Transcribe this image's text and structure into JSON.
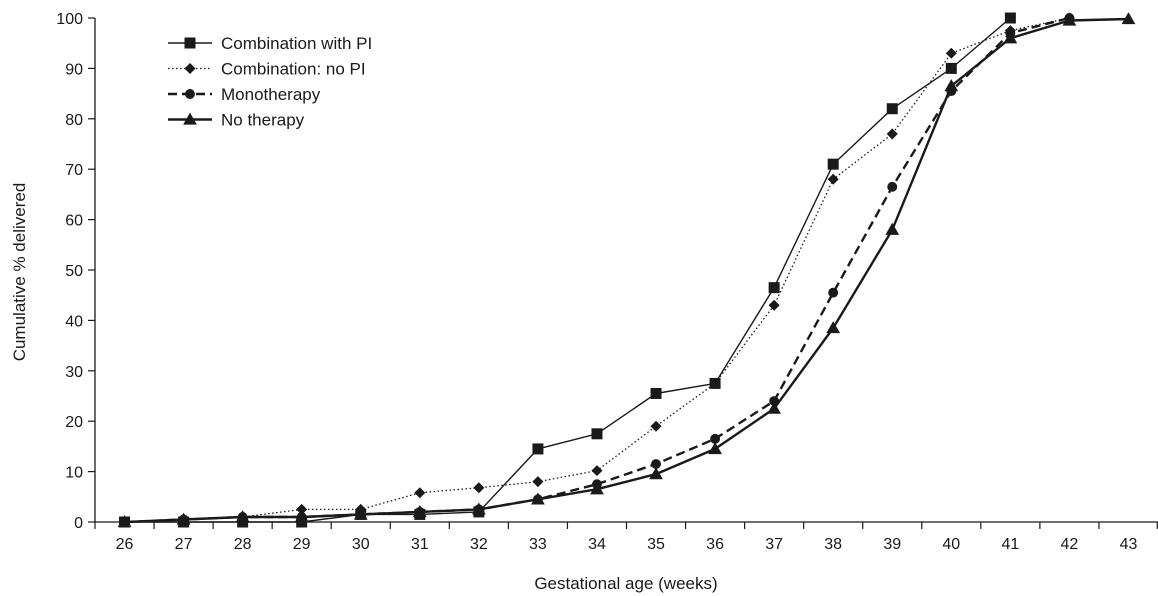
{
  "chart_data": {
    "type": "line",
    "xlabel": "Gestational age (weeks)",
    "ylabel": "Cumulative % delivered",
    "x": [
      26,
      27,
      28,
      29,
      30,
      31,
      32,
      33,
      34,
      35,
      36,
      37,
      38,
      39,
      40,
      41,
      42,
      43
    ],
    "xticks": [
      "26",
      "27",
      "28",
      "29",
      "30",
      "31",
      "32",
      "33",
      "34",
      "35",
      "36",
      "37",
      "38",
      "39",
      "40",
      "41",
      "42",
      "43"
    ],
    "yticks": [
      "0",
      "10",
      "20",
      "30",
      "40",
      "50",
      "60",
      "70",
      "80",
      "90",
      "100"
    ],
    "ylim": [
      0,
      100
    ],
    "grid": false,
    "legend_position": "top-left",
    "series": [
      {
        "name": "Combination with PI",
        "marker": "square",
        "line": "solid",
        "points": [
          [
            26,
            0
          ],
          [
            27,
            0
          ],
          [
            28,
            0
          ],
          [
            29,
            0
          ],
          [
            30,
            1.5
          ],
          [
            31,
            1.5
          ],
          [
            32,
            2
          ],
          [
            33,
            14.5
          ],
          [
            34,
            17.5
          ],
          [
            35,
            25.5
          ],
          [
            36,
            27.5
          ],
          [
            37,
            46.5
          ],
          [
            38,
            71
          ],
          [
            39,
            82
          ],
          [
            40,
            90
          ],
          [
            41,
            100
          ]
        ]
      },
      {
        "name": "Combination: no PI",
        "marker": "diamond",
        "line": "dotted",
        "points": [
          [
            26,
            0
          ],
          [
            27,
            0.5
          ],
          [
            28,
            1
          ],
          [
            29,
            2.5
          ],
          [
            30,
            2.5
          ],
          [
            31,
            5.8
          ],
          [
            32,
            6.8
          ],
          [
            33,
            8
          ],
          [
            34,
            10.2
          ],
          [
            35,
            19
          ],
          [
            36,
            27.5
          ],
          [
            37,
            43
          ],
          [
            38,
            68
          ],
          [
            39,
            77
          ],
          [
            40,
            93
          ],
          [
            41,
            97.5
          ],
          [
            42,
            100
          ]
        ]
      },
      {
        "name": "Monotherapy",
        "marker": "circle",
        "line": "dashed",
        "points": [
          [
            26,
            0
          ],
          [
            27,
            0.5
          ],
          [
            28,
            1
          ],
          [
            29,
            1
          ],
          [
            30,
            1.5
          ],
          [
            31,
            2
          ],
          [
            32,
            2.5
          ],
          [
            33,
            4.5
          ],
          [
            34,
            7.5
          ],
          [
            35,
            11.5
          ],
          [
            36,
            16.5
          ],
          [
            37,
            24
          ],
          [
            38,
            45.5
          ],
          [
            39,
            66.5
          ],
          [
            40,
            85.5
          ],
          [
            41,
            97
          ],
          [
            42,
            100
          ]
        ]
      },
      {
        "name": "No therapy",
        "marker": "triangle",
        "line": "solid-thick",
        "points": [
          [
            26,
            0
          ],
          [
            27,
            0.5
          ],
          [
            28,
            1
          ],
          [
            29,
            1
          ],
          [
            30,
            1.5
          ],
          [
            31,
            2
          ],
          [
            32,
            2.5
          ],
          [
            33,
            4.5
          ],
          [
            34,
            6.5
          ],
          [
            35,
            9.5
          ],
          [
            36,
            14.5
          ],
          [
            37,
            22.5
          ],
          [
            38,
            38.5
          ],
          [
            39,
            58
          ],
          [
            40,
            86.5
          ],
          [
            41,
            96
          ],
          [
            42,
            99.5
          ],
          [
            43,
            99.8
          ]
        ]
      }
    ]
  }
}
